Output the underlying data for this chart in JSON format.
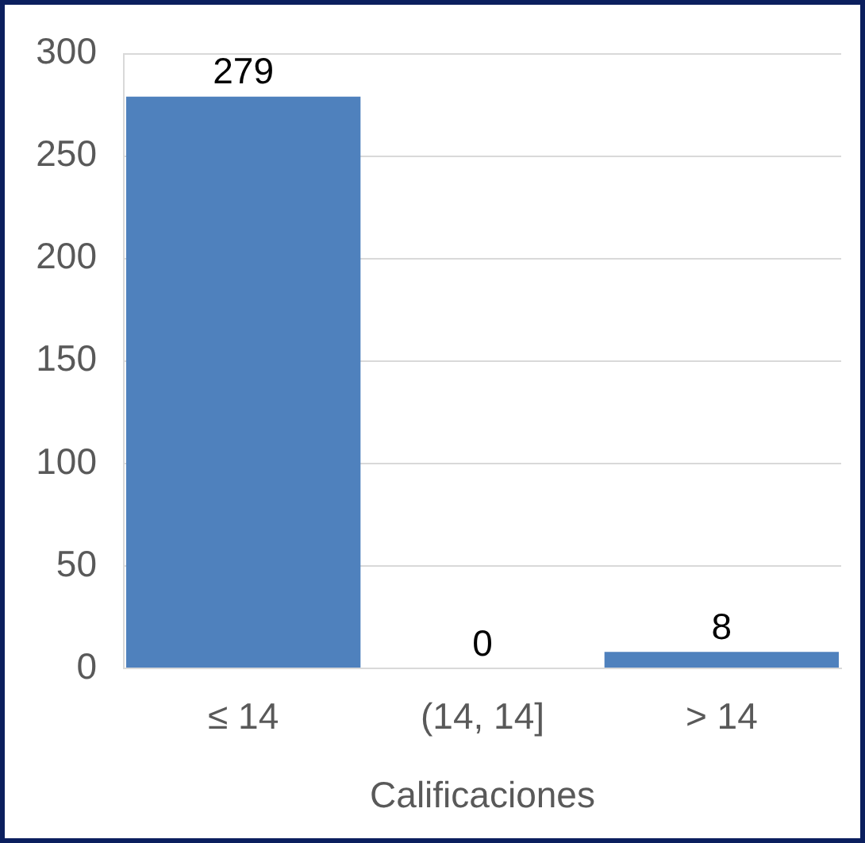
{
  "chart_data": {
    "type": "bar",
    "categories": [
      "≤ 14",
      "(14, 14]",
      "> 14"
    ],
    "values": [
      279,
      0,
      8
    ],
    "color": "#4f81bd",
    "xlabel": "Calificaciones",
    "ylim": [
      0,
      300
    ],
    "yticks": [
      0,
      50,
      100,
      150,
      200,
      250,
      300
    ],
    "grid": "y",
    "data_labels": true
  }
}
